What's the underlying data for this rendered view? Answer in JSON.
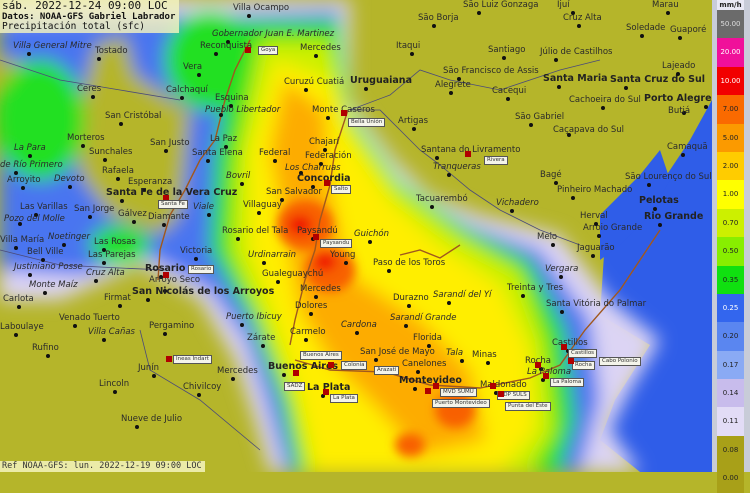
{
  "header": {
    "datetime": "sáb. 2022-12-24 09:00 LOC",
    "source": "Datos: NOAA-GFS Gabriel Labrador",
    "variable": "Precipitación total (sfc)"
  },
  "footer": {
    "reference": "Ref NOAA-GFS: lun. 2022-12-19 09:00 LOC"
  },
  "legend": {
    "unit": "mm/h",
    "items": [
      {
        "label": "50.00",
        "color": "#6b6b6b",
        "text": "#dddddd"
      },
      {
        "label": "20.00",
        "color": "#f0109a",
        "text": "#ffffff"
      },
      {
        "label": "10.00",
        "color": "#f20000",
        "text": "#ffffff"
      },
      {
        "label": "7.00",
        "color": "#fa6a00",
        "text": "#222222"
      },
      {
        "label": "5.00",
        "color": "#fb9a00",
        "text": "#222222"
      },
      {
        "label": "2.00",
        "color": "#ffcc00",
        "text": "#222222"
      },
      {
        "label": "1.00",
        "color": "#ffff00",
        "text": "#222222"
      },
      {
        "label": "0.70",
        "color": "#ccf000",
        "text": "#222222"
      },
      {
        "label": "0.50",
        "color": "#88ee00",
        "text": "#222222"
      },
      {
        "label": "0.35",
        "color": "#10e010",
        "text": "#222222"
      },
      {
        "label": "0.25",
        "color": "#3366ee",
        "text": "#ffffff"
      },
      {
        "label": "0.20",
        "color": "#5a86f0",
        "text": "#222222"
      },
      {
        "label": "0.17",
        "color": "#8aaaf4",
        "text": "#222222"
      },
      {
        "label": "0.14",
        "color": "#c8bcec",
        "text": "#222222"
      },
      {
        "label": "0.11",
        "color": "#e2dcf6",
        "text": "#222222"
      },
      {
        "label": "0.08",
        "color": "#a8a018",
        "text": "#222222"
      },
      {
        "label": "0.00",
        "color": "#a8a018",
        "text": "#222222"
      }
    ]
  },
  "colors": {
    "land": "#b5b52a",
    "ocean": "#2f5de8",
    "river": "#a0581e"
  },
  "cities": [
    {
      "name": "Villa Ocampo",
      "style": "normal"
    },
    {
      "name": "Gobernador Juan E. Martinez",
      "style": "italic"
    },
    {
      "name": "Reconquista",
      "style": "normal"
    },
    {
      "name": "Mercedes",
      "style": "normal"
    },
    {
      "name": "Villa General Mitre",
      "style": "italic"
    },
    {
      "name": "Tostado",
      "style": "normal"
    },
    {
      "name": "Vera",
      "style": "normal"
    },
    {
      "name": "Ceres",
      "style": "normal"
    },
    {
      "name": "Calchaquí",
      "style": "normal"
    },
    {
      "name": "Esquina",
      "style": "normal"
    },
    {
      "name": "Pueblo Libertador",
      "style": "italic"
    },
    {
      "name": "Curuzú Cuatiá",
      "style": "normal"
    },
    {
      "name": "Monte Caseros",
      "style": "normal"
    },
    {
      "name": "Uruguaiana",
      "style": "bold"
    },
    {
      "name": "San Cristóbal",
      "style": "normal"
    },
    {
      "name": "La Paz",
      "style": "normal"
    },
    {
      "name": "San Justo",
      "style": "normal"
    },
    {
      "name": "Morteros",
      "style": "normal"
    },
    {
      "name": "La Para",
      "style": "italic"
    },
    {
      "name": "Sunchales",
      "style": "normal"
    },
    {
      "name": "Santa Elena",
      "style": "normal"
    },
    {
      "name": "Federal",
      "style": "normal"
    },
    {
      "name": "Chajarí",
      "style": "normal"
    },
    {
      "name": "Federación",
      "style": "normal"
    },
    {
      "name": "Los Charruas",
      "style": "italic"
    },
    {
      "name": "de Río Primero",
      "style": "italic"
    },
    {
      "name": "Rafaela",
      "style": "normal"
    },
    {
      "name": "Arroyito",
      "style": "normal"
    },
    {
      "name": "Devoto",
      "style": "italic"
    },
    {
      "name": "Bovril",
      "style": "italic"
    },
    {
      "name": "Esperanza",
      "style": "normal"
    },
    {
      "name": "Concordia",
      "style": "bold"
    },
    {
      "name": "San Salvador",
      "style": "normal"
    },
    {
      "name": "Santa Fe de la Vera Cruz",
      "style": "bold"
    },
    {
      "name": "Las Varillas",
      "style": "normal"
    },
    {
      "name": "San Jorge",
      "style": "normal"
    },
    {
      "name": "Gálvez",
      "style": "normal"
    },
    {
      "name": "Diamante",
      "style": "normal"
    },
    {
      "name": "Viale",
      "style": "italic"
    },
    {
      "name": "Villaguay",
      "style": "normal"
    },
    {
      "name": "Pozo del Molle",
      "style": "italic"
    },
    {
      "name": "Noetinger",
      "style": "italic"
    },
    {
      "name": "Las Rosas",
      "style": "normal"
    },
    {
      "name": "Rosario del Tala",
      "style": "normal"
    },
    {
      "name": "Paysandú",
      "style": "normal"
    },
    {
      "name": "Guichón",
      "style": "italic"
    },
    {
      "name": "Villa María",
      "style": "normal"
    },
    {
      "name": "Bell Ville",
      "style": "normal"
    },
    {
      "name": "Las Parejas",
      "style": "normal"
    },
    {
      "name": "Victoria",
      "style": "normal"
    },
    {
      "name": "Urdinarrain",
      "style": "italic"
    },
    {
      "name": "Young",
      "style": "normal"
    },
    {
      "name": "Paso de los Toros",
      "style": "normal"
    },
    {
      "name": "Justiniano Posse",
      "style": "italic"
    },
    {
      "name": "Cruz Alta",
      "style": "italic"
    },
    {
      "name": "Rosario",
      "style": "bold"
    },
    {
      "name": "Arroyo Seco",
      "style": "normal"
    },
    {
      "name": "Gualeguaychú",
      "style": "normal"
    },
    {
      "name": "Mercedes",
      "style": "normal"
    },
    {
      "name": "San Nicolás de los Arroyos",
      "style": "bold"
    },
    {
      "name": "Monte Maíz",
      "style": "italic"
    },
    {
      "name": "Carlota",
      "style": "normal"
    },
    {
      "name": "Durazno",
      "style": "normal"
    },
    {
      "name": "Sarandí del Yí",
      "style": "italic"
    },
    {
      "name": "Treinta y Tres",
      "style": "normal"
    },
    {
      "name": "Firmat",
      "style": "normal"
    },
    {
      "name": "Dolores",
      "style": "normal"
    },
    {
      "name": "Venado Tuerto",
      "style": "normal"
    },
    {
      "name": "Puerto Ibicuy",
      "style": "italic"
    },
    {
      "name": "Sarandí Grande",
      "style": "italic"
    },
    {
      "name": "Cardona",
      "style": "italic"
    },
    {
      "name": "Villa Cañas",
      "style": "italic"
    },
    {
      "name": "Pergamino",
      "style": "normal"
    },
    {
      "name": "Carmelo",
      "style": "normal"
    },
    {
      "name": "Zárate",
      "style": "normal"
    },
    {
      "name": "Laboulaye",
      "style": "normal"
    },
    {
      "name": "Florida",
      "style": "normal"
    },
    {
      "name": "Rufino",
      "style": "normal"
    },
    {
      "name": "San José de Mayo",
      "style": "normal"
    },
    {
      "name": "Tala",
      "style": "italic"
    },
    {
      "name": "Minas",
      "style": "normal"
    },
    {
      "name": "Castillos",
      "style": "normal"
    },
    {
      "name": "Rocha",
      "style": "normal"
    },
    {
      "name": "La Paloma",
      "style": "italic"
    },
    {
      "name": "Canelones",
      "style": "normal"
    },
    {
      "name": "Buenos Aires",
      "style": "bold"
    },
    {
      "name": "Junín",
      "style": "normal"
    },
    {
      "name": "Mercedes",
      "style": "normal"
    },
    {
      "name": "Montevideo",
      "style": "bold"
    },
    {
      "name": "Maldonado",
      "style": "normal"
    },
    {
      "name": "Lincoln",
      "style": "normal"
    },
    {
      "name": "Chivilcoy",
      "style": "normal"
    },
    {
      "name": "La Plata",
      "style": "bold"
    },
    {
      "name": "Nueve de Julio",
      "style": "normal"
    },
    {
      "name": "São Luiz Gonzaga",
      "style": "normal"
    },
    {
      "name": "Ijuí",
      "style": "normal"
    },
    {
      "name": "Marau",
      "style": "normal"
    },
    {
      "name": "São Borja",
      "style": "normal"
    },
    {
      "name": "Cruz Alta",
      "style": "normal"
    },
    {
      "name": "Soledade",
      "style": "normal"
    },
    {
      "name": "Guaporé",
      "style": "normal"
    },
    {
      "name": "Itaqui",
      "style": "normal"
    },
    {
      "name": "Santiago",
      "style": "normal"
    },
    {
      "name": "Júlio de Castilhos",
      "style": "normal"
    },
    {
      "name": "São Francisco de Assis",
      "style": "normal"
    },
    {
      "name": "Santa Maria",
      "style": "bold"
    },
    {
      "name": "Santa Cruz do Sul",
      "style": "bold"
    },
    {
      "name": "Lajeado",
      "style": "normal"
    },
    {
      "name": "Porto Alegre",
      "style": "bold"
    },
    {
      "name": "Alegrete",
      "style": "normal"
    },
    {
      "name": "Cacequi",
      "style": "normal"
    },
    {
      "name": "Cachoeira do Sul",
      "style": "normal"
    },
    {
      "name": "Butiá",
      "style": "normal"
    },
    {
      "name": "São Gabriel",
      "style": "normal"
    },
    {
      "name": "Caçapava do Sul",
      "style": "normal"
    },
    {
      "name": "Artigas",
      "style": "normal"
    },
    {
      "name": "Santana do Livramento",
      "style": "normal"
    },
    {
      "name": "Camaquã",
      "style": "normal"
    },
    {
      "name": "Tranqueras",
      "style": "italic"
    },
    {
      "name": "Bagé",
      "style": "normal"
    },
    {
      "name": "Pinheiro Machado",
      "style": "normal"
    },
    {
      "name": "São Lourenço do Sul",
      "style": "normal"
    },
    {
      "name": "Tacuarembó",
      "style": "normal"
    },
    {
      "name": "Vichadero",
      "style": "italic"
    },
    {
      "name": "Pelotas",
      "style": "bold"
    },
    {
      "name": "Rio Grande",
      "style": "bold"
    },
    {
      "name": "Herval",
      "style": "normal"
    },
    {
      "name": "Arroio Grande",
      "style": "normal"
    },
    {
      "name": "Melo",
      "style": "normal"
    },
    {
      "name": "Jaguarão",
      "style": "normal"
    },
    {
      "name": "Vergara",
      "style": "italic"
    },
    {
      "name": "Santa Vitória do Palmar",
      "style": "normal"
    }
  ],
  "stations": [
    {
      "name": "Goya"
    },
    {
      "name": "Bella Unión"
    },
    {
      "name": "Salto"
    },
    {
      "name": "Santa Fe"
    },
    {
      "name": "Paysandu"
    },
    {
      "name": "Rosario"
    },
    {
      "name": "Rivera"
    },
    {
      "name": "Ineas Indart"
    },
    {
      "name": "Colonia"
    },
    {
      "name": "Buenos Aires"
    },
    {
      "name": "Arazati"
    },
    {
      "name": "SADZ"
    },
    {
      "name": "La Plata"
    },
    {
      "name": "MVD SUMU"
    },
    {
      "name": "Puerto Montevideo"
    },
    {
      "name": "PDP SULS"
    },
    {
      "name": "Punta del Este"
    },
    {
      "name": "Castillos"
    },
    {
      "name": "Rocha"
    },
    {
      "name": "Cabo Polonio"
    },
    {
      "name": "La Paloma"
    }
  ]
}
